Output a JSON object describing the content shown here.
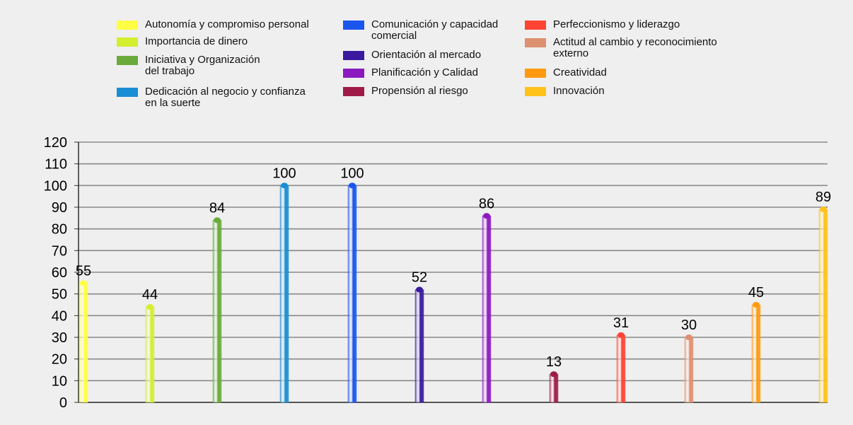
{
  "chart_data": {
    "type": "bar",
    "title": "",
    "xlabel": "",
    "ylabel": "",
    "ylim": [
      0,
      120
    ],
    "yticks": [
      0,
      10,
      20,
      30,
      40,
      50,
      60,
      70,
      80,
      90,
      100,
      110,
      120
    ],
    "grid": true,
    "legend_position": "top",
    "categories": [
      "Autonomía y compromiso personal",
      "Importancia de dinero",
      "Iniciativa y Organización\ndel trabajo",
      "Dedicación al negocio y confianza\nen la suerte",
      "Comunicación y capacidad\ncomercial",
      "Orientación al mercado",
      "Planificación y Calidad",
      "Propensión al riesgo",
      "Perfeccionismo y liderazgo",
      "Actitud al cambio y reconocimiento\nexterno",
      "Creatividad",
      "Innovación"
    ],
    "values": [
      55,
      44,
      84,
      100,
      100,
      52,
      86,
      13,
      31,
      30,
      45,
      89
    ],
    "colors": [
      "#ffff44",
      "#d4ee30",
      "#6aaa3a",
      "#1a8ed4",
      "#1a55ee",
      "#3a1a9e",
      "#8a1ac0",
      "#a01a48",
      "#ff4433",
      "#dd9070",
      "#ff9a10",
      "#ffc21a"
    ]
  }
}
